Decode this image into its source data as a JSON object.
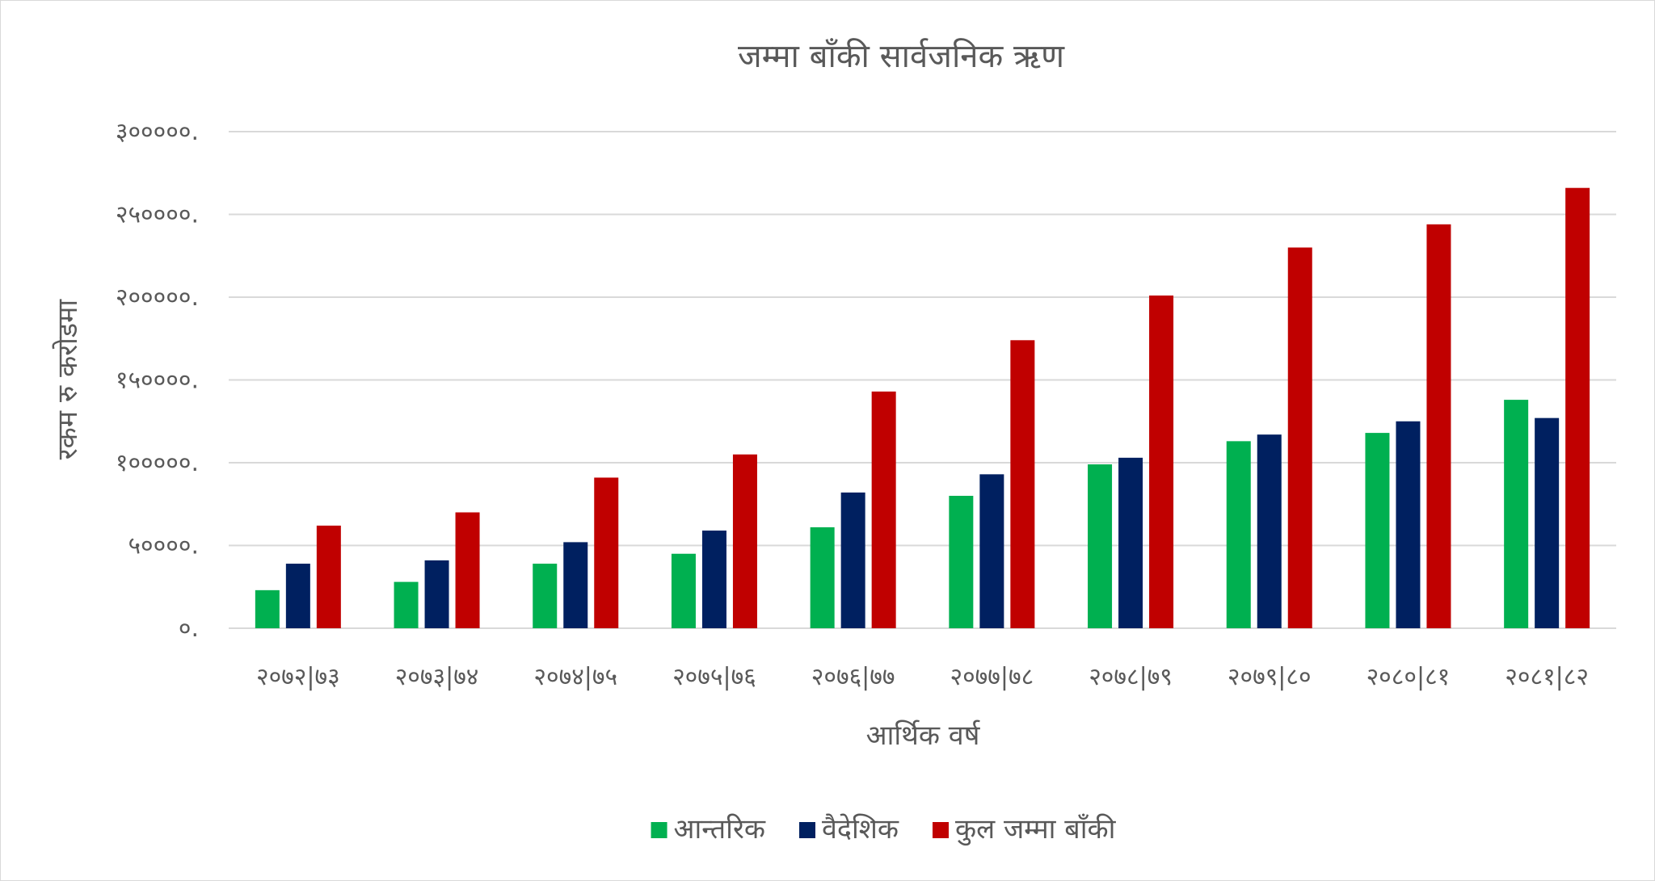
{
  "chart_data": {
    "type": "bar",
    "title": "जम्मा बाँकी सार्वजनिक ऋण",
    "xlabel": "आर्थिक  वर्ष",
    "ylabel": "रकम रु करोडमा",
    "ylim": [
      0,
      300000
    ],
    "y_ticks": [
      "०.",
      "५००००.",
      "१०००००.",
      "१५००००.",
      "२०००००.",
      "२५००००.",
      "३०००००."
    ],
    "y_tick_values": [
      0,
      50000,
      100000,
      150000,
      200000,
      250000,
      300000
    ],
    "categories": [
      "२०७२|७३",
      "२०७३|७४",
      "२०७४|७५",
      "२०७५|७६",
      "२०७६|७७",
      "२०७७|७८",
      "२०७८|७९",
      "२०७९|८०",
      "२०८०|८१",
      "२०८१|८२"
    ],
    "series": [
      {
        "name": "आन्तरिक",
        "color": "#00b050",
        "values": [
          23000,
          28000,
          39000,
          45000,
          61000,
          80000,
          99000,
          113000,
          118000,
          138000
        ]
      },
      {
        "name": "वैदेशिक",
        "color": "#002060",
        "values": [
          39000,
          41000,
          52000,
          59000,
          82000,
          93000,
          103000,
          117000,
          125000,
          127000
        ]
      },
      {
        "name": "कुल  जम्मा  बाँकी",
        "color": "#c00000",
        "values": [
          62000,
          70000,
          91000,
          105000,
          143000,
          174000,
          201000,
          230000,
          244000,
          266000
        ]
      }
    ],
    "grid": true,
    "legend_position": "bottom"
  }
}
